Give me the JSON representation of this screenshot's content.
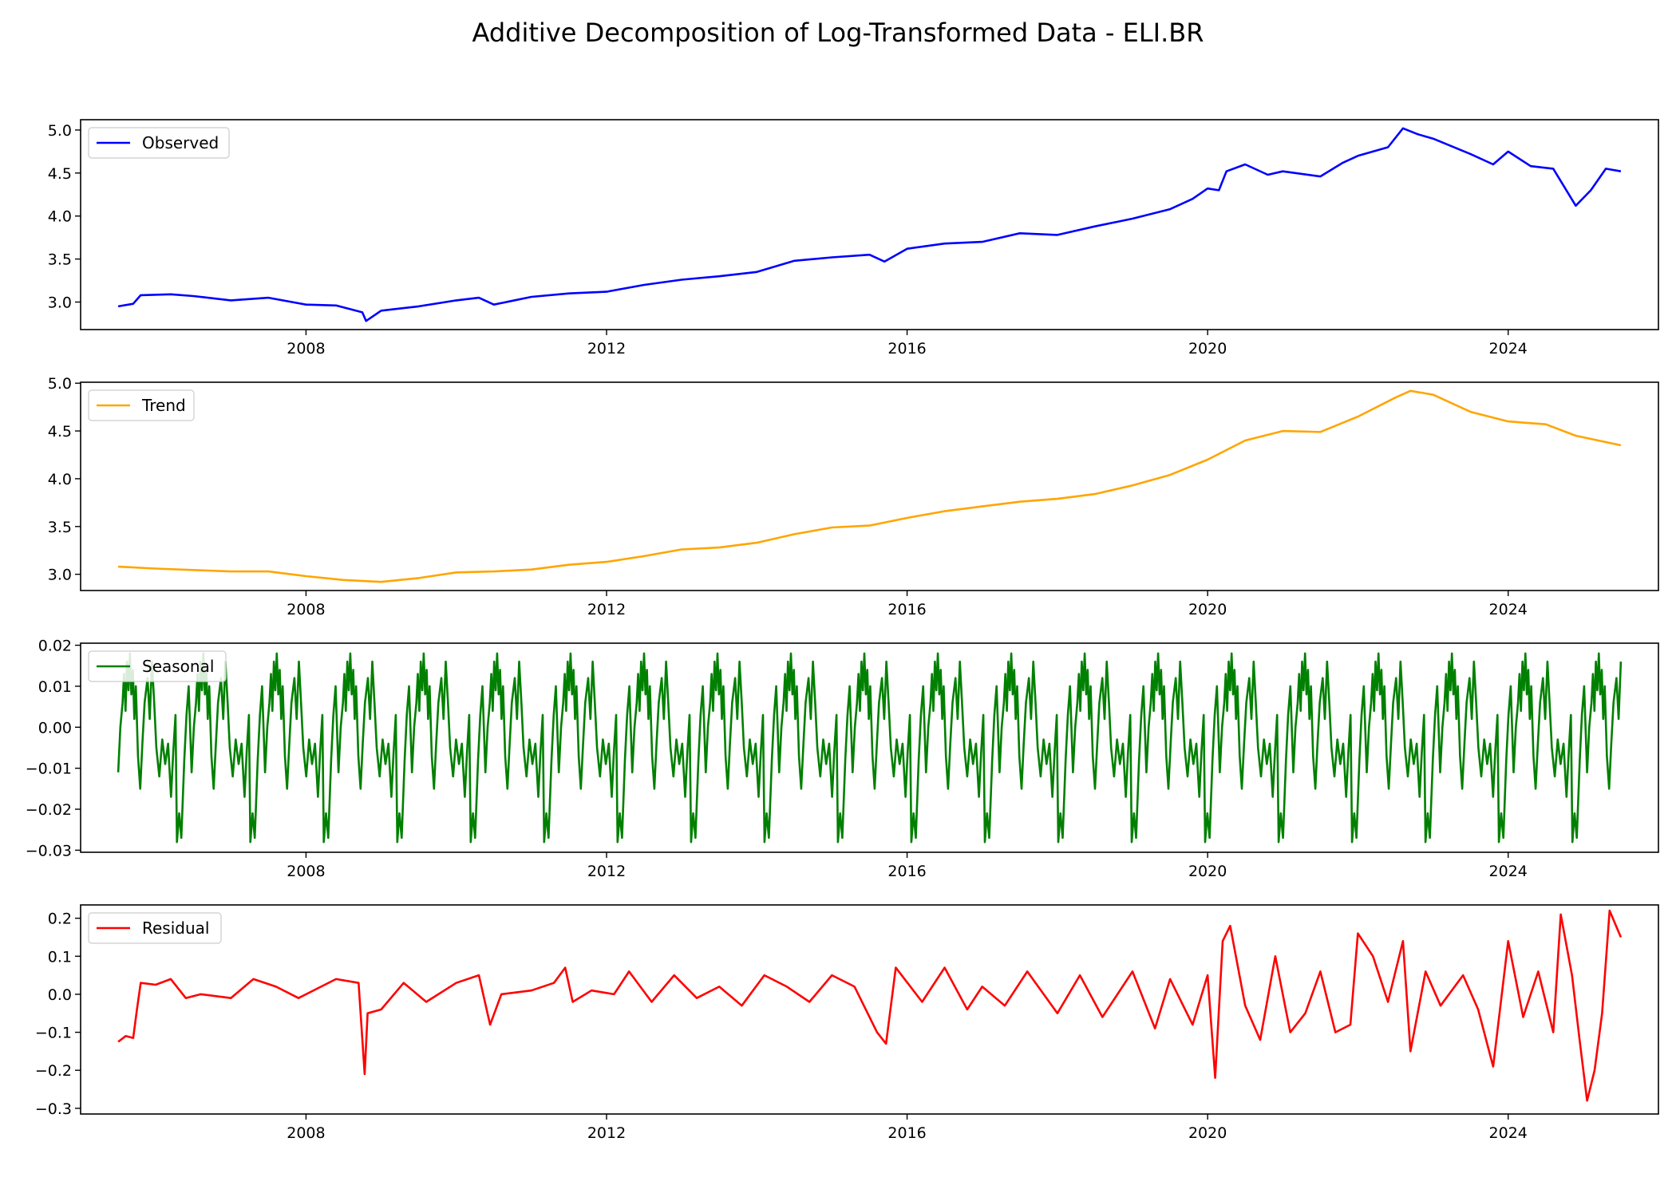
{
  "chart_data": {
    "title": "Additive Decomposition of Log-Transformed Data - ELI.BR",
    "type": "line",
    "x_axis": {
      "type": "time",
      "xlim": [
        2005.0,
        2026.0
      ],
      "tick_values": [
        2008,
        2012,
        2016,
        2020,
        2024
      ],
      "tick_labels": [
        "2008",
        "2012",
        "2016",
        "2020",
        "2024"
      ]
    },
    "panels": [
      {
        "name": "Observed",
        "color": "#0000ff",
        "legend_position": "top-left",
        "ylim": [
          2.68,
          5.12
        ],
        "y_ticks": [
          3.0,
          3.5,
          4.0,
          4.5,
          5.0
        ],
        "y_tick_labels": [
          "3.0",
          "3.5",
          "4.0",
          "4.5",
          "5.0"
        ],
        "x": [
          2005.5,
          2005.7,
          2005.8,
          2006.2,
          2006.5,
          2007.0,
          2007.5,
          2008.0,
          2008.4,
          2008.75,
          2008.8,
          2009.0,
          2009.5,
          2010.0,
          2010.3,
          2010.5,
          2011.0,
          2011.5,
          2012.0,
          2012.5,
          2013.0,
          2013.5,
          2014.0,
          2014.5,
          2015.0,
          2015.5,
          2015.7,
          2016.0,
          2016.5,
          2017.0,
          2017.5,
          2018.0,
          2018.5,
          2019.0,
          2019.5,
          2019.8,
          2020.0,
          2020.15,
          2020.25,
          2020.5,
          2020.8,
          2021.0,
          2021.5,
          2021.8,
          2022.0,
          2022.4,
          2022.6,
          2022.8,
          2023.0,
          2023.5,
          2023.8,
          2024.0,
          2024.3,
          2024.6,
          2024.9,
          2025.1,
          2025.3,
          2025.5
        ],
        "values": [
          2.95,
          2.98,
          3.08,
          3.09,
          3.07,
          3.02,
          3.05,
          2.97,
          2.96,
          2.88,
          2.78,
          2.9,
          2.95,
          3.02,
          3.05,
          2.97,
          3.06,
          3.1,
          3.12,
          3.2,
          3.26,
          3.3,
          3.35,
          3.48,
          3.52,
          3.55,
          3.47,
          3.62,
          3.68,
          3.7,
          3.8,
          3.78,
          3.88,
          3.97,
          4.08,
          4.2,
          4.32,
          4.3,
          4.52,
          4.6,
          4.48,
          4.52,
          4.46,
          4.62,
          4.7,
          4.8,
          5.02,
          4.95,
          4.9,
          4.72,
          4.6,
          4.75,
          4.58,
          4.55,
          4.12,
          4.3,
          4.55,
          4.52
        ]
      },
      {
        "name": "Trend",
        "color": "#ffa500",
        "legend_position": "top-left",
        "ylim": [
          2.83,
          5.01
        ],
        "y_ticks": [
          3.0,
          3.5,
          4.0,
          4.5,
          5.0
        ],
        "y_tick_labels": [
          "3.0",
          "3.5",
          "4.0",
          "4.5",
          "5.0"
        ],
        "x": [
          2005.5,
          2006.0,
          2007.0,
          2007.5,
          2008.0,
          2008.5,
          2009.0,
          2009.5,
          2010.0,
          2010.5,
          2011.0,
          2011.5,
          2012.0,
          2012.5,
          2013.0,
          2013.5,
          2014.0,
          2014.5,
          2015.0,
          2015.5,
          2016.0,
          2016.5,
          2017.0,
          2017.5,
          2018.0,
          2018.5,
          2019.0,
          2019.5,
          2020.0,
          2020.5,
          2021.0,
          2021.5,
          2022.0,
          2022.5,
          2022.7,
          2023.0,
          2023.5,
          2024.0,
          2024.5,
          2024.9,
          2025.5
        ],
        "values": [
          3.08,
          3.06,
          3.03,
          3.03,
          2.98,
          2.94,
          2.92,
          2.96,
          3.02,
          3.03,
          3.05,
          3.1,
          3.13,
          3.19,
          3.26,
          3.28,
          3.33,
          3.42,
          3.49,
          3.51,
          3.59,
          3.66,
          3.71,
          3.76,
          3.79,
          3.84,
          3.93,
          4.04,
          4.2,
          4.4,
          4.5,
          4.49,
          4.65,
          4.85,
          4.92,
          4.88,
          4.7,
          4.6,
          4.57,
          4.45,
          4.35
        ]
      },
      {
        "name": "Seasonal",
        "color": "#008000",
        "legend_position": "top-left",
        "ylim": [
          -0.0305,
          0.0205
        ],
        "y_ticks": [
          -0.03,
          -0.02,
          -0.01,
          0.0,
          0.01,
          0.02
        ],
        "y_tick_labels": [
          "−0.03",
          "−0.02",
          "−0.01",
          "0.00",
          "0.01",
          "0.02"
        ],
        "period_years": 0.9775,
        "one_period_pattern": {
          "phase": [
            0.0,
            0.03,
            0.06,
            0.08,
            0.1,
            0.12,
            0.14,
            0.16,
            0.18,
            0.2,
            0.22,
            0.24,
            0.27,
            0.3,
            0.33,
            0.36,
            0.4,
            0.43,
            0.46,
            0.49,
            0.52,
            0.56,
            0.6,
            0.64,
            0.68,
            0.72,
            0.75,
            0.78,
            0.8,
            0.83,
            0.86,
            0.9,
            0.93,
            0.96,
            1.0
          ],
          "values": [
            -0.011,
            0.0,
            0.006,
            0.013,
            0.004,
            0.016,
            0.009,
            0.018,
            0.008,
            0.014,
            0.002,
            0.01,
            -0.007,
            -0.015,
            -0.004,
            0.006,
            0.012,
            0.002,
            0.016,
            0.006,
            -0.005,
            -0.012,
            -0.003,
            -0.009,
            -0.004,
            -0.017,
            -0.006,
            0.003,
            -0.028,
            -0.021,
            -0.027,
            -0.008,
            0.003,
            0.01,
            -0.011
          ]
        },
        "x_range": [
          2005.5,
          2025.5
        ]
      },
      {
        "name": "Residual",
        "color": "#ff0000",
        "legend_position": "top-left",
        "ylim": [
          -0.315,
          0.235
        ],
        "y_ticks": [
          -0.3,
          -0.2,
          -0.1,
          0.0,
          0.1,
          0.2
        ],
        "y_tick_labels": [
          "−0.3",
          "−0.2",
          "−0.1",
          "0.0",
          "0.1",
          "0.2"
        ],
        "x": [
          2005.5,
          2005.6,
          2005.7,
          2005.75,
          2005.8,
          2006.0,
          2006.2,
          2006.4,
          2006.6,
          2007.0,
          2007.3,
          2007.6,
          2007.9,
          2008.2,
          2008.4,
          2008.7,
          2008.78,
          2008.82,
          2009.0,
          2009.3,
          2009.6,
          2010.0,
          2010.3,
          2010.45,
          2010.6,
          2011.0,
          2011.3,
          2011.45,
          2011.55,
          2011.8,
          2012.1,
          2012.3,
          2012.6,
          2012.9,
          2013.2,
          2013.5,
          2013.8,
          2014.1,
          2014.4,
          2014.7,
          2015.0,
          2015.3,
          2015.6,
          2015.72,
          2015.85,
          2016.2,
          2016.5,
          2016.8,
          2017.0,
          2017.3,
          2017.6,
          2018.0,
          2018.3,
          2018.6,
          2019.0,
          2019.3,
          2019.5,
          2019.8,
          2020.0,
          2020.1,
          2020.2,
          2020.3,
          2020.5,
          2020.7,
          2020.9,
          2021.1,
          2021.3,
          2021.5,
          2021.7,
          2021.9,
          2022.0,
          2022.2,
          2022.4,
          2022.6,
          2022.7,
          2022.9,
          2023.1,
          2023.4,
          2023.6,
          2023.8,
          2024.0,
          2024.2,
          2024.4,
          2024.6,
          2024.7,
          2024.85,
          2024.95,
          2025.05,
          2025.15,
          2025.25,
          2025.35,
          2025.5
        ],
        "values": [
          -0.125,
          -0.11,
          -0.115,
          -0.04,
          0.03,
          0.025,
          0.04,
          -0.01,
          0.0,
          -0.01,
          0.04,
          0.02,
          -0.01,
          0.02,
          0.04,
          0.03,
          -0.21,
          -0.05,
          -0.04,
          0.03,
          -0.02,
          0.03,
          0.05,
          -0.08,
          0.0,
          0.01,
          0.03,
          0.07,
          -0.02,
          0.01,
          0.0,
          0.06,
          -0.02,
          0.05,
          -0.01,
          0.02,
          -0.03,
          0.05,
          0.02,
          -0.02,
          0.05,
          0.02,
          -0.1,
          -0.13,
          0.07,
          -0.02,
          0.07,
          -0.04,
          0.02,
          -0.03,
          0.06,
          -0.05,
          0.05,
          -0.06,
          0.06,
          -0.09,
          0.04,
          -0.08,
          0.05,
          -0.22,
          0.14,
          0.18,
          -0.03,
          -0.12,
          0.1,
          -0.1,
          -0.05,
          0.06,
          -0.1,
          -0.08,
          0.16,
          0.1,
          -0.02,
          0.14,
          -0.15,
          0.06,
          -0.03,
          0.05,
          -0.04,
          -0.19,
          0.14,
          -0.06,
          0.06,
          -0.1,
          0.21,
          0.05,
          -0.12,
          -0.28,
          -0.2,
          -0.05,
          0.22,
          0.15
        ]
      }
    ]
  }
}
